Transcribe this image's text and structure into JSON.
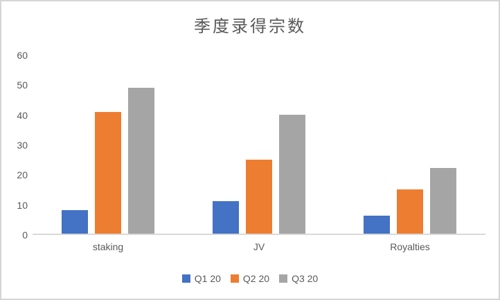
{
  "chart_data": {
    "type": "bar",
    "title": "季度录得宗数",
    "categories": [
      "staking",
      "JV",
      "Royalties"
    ],
    "series": [
      {
        "name": "Q1 20",
        "color": "#4472C4",
        "values": [
          8,
          11,
          6
        ]
      },
      {
        "name": "Q2 20",
        "color": "#ED7D31",
        "values": [
          41,
          25,
          15
        ]
      },
      {
        "name": "Q3 20",
        "color": "#A5A5A5",
        "values": [
          49,
          40,
          22
        ]
      }
    ],
    "ylim": [
      0,
      60
    ],
    "yticks": [
      0,
      10,
      20,
      30,
      40,
      50,
      60
    ],
    "grid": false,
    "legend_position": "bottom",
    "axis_line_color": "#D9D9D9",
    "text_color": "#595959"
  }
}
